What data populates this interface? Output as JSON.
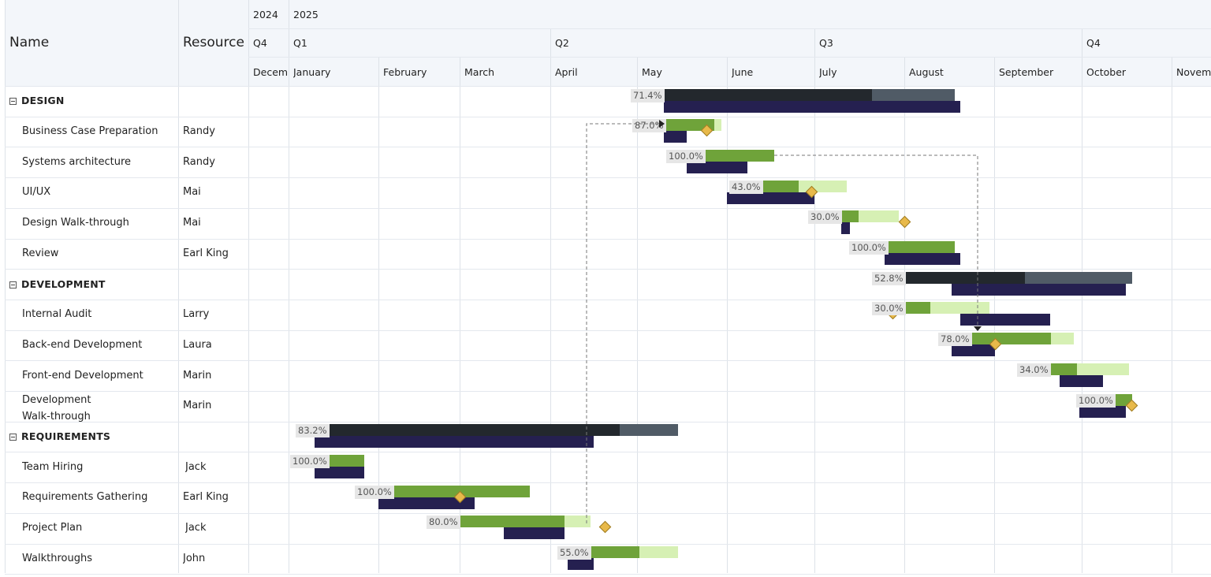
{
  "columns": {
    "name": "Name",
    "resource": "Resource"
  },
  "timeline": {
    "years": [
      "2024",
      "2025"
    ],
    "quarters": [
      "Q4",
      "Q1",
      "Q2",
      "Q3",
      "Q4"
    ],
    "months": [
      "December",
      "January",
      "February",
      "March",
      "April",
      "May",
      "June",
      "July",
      "August",
      "September",
      "October",
      "November"
    ]
  },
  "rows": [
    {
      "name": "DESIGN",
      "resource": "",
      "summary": true,
      "percent": "71.4%"
    },
    {
      "name": "Business Case Preparation",
      "resource": "Randy",
      "percent": "87.0%"
    },
    {
      "name": "Systems architecture",
      "resource": "Randy",
      "percent": "100.0%"
    },
    {
      "name": "UI/UX",
      "resource": "Mai",
      "percent": "43.0%"
    },
    {
      "name": "Design Walk-through",
      "resource": "Mai",
      "percent": "30.0%"
    },
    {
      "name": "Review",
      "resource": "Earl King",
      "percent": "100.0%"
    },
    {
      "name": "DEVELOPMENT",
      "resource": "",
      "summary": true,
      "percent": "52.8%"
    },
    {
      "name": "Internal Audit",
      "resource": "Larry",
      "percent": "30.0%"
    },
    {
      "name": "Back-end Development",
      "resource": "Laura",
      "percent": "78.0%"
    },
    {
      "name": "Front-end Development",
      "resource": "Marin",
      "percent": "34.0%"
    },
    {
      "name": "Development Walk-through",
      "resource": "Marin",
      "percent": "100.0%"
    },
    {
      "name": "REQUIREMENTS",
      "resource": "",
      "summary": true,
      "percent": "83.2%"
    },
    {
      "name": "Team Hiring",
      "resource": "Jack",
      "percent": "100.0%"
    },
    {
      "name": "Requirements Gathering",
      "resource": "Earl King",
      "percent": "100.0%"
    },
    {
      "name": "Project Plan",
      "resource": "Jack",
      "percent": "80.0%"
    },
    {
      "name": "Walkthroughs",
      "resource": "John",
      "percent": "55.0%"
    }
  ],
  "colors": {
    "task_done": "#6fa33a",
    "task_remaining": "#d6f0b4",
    "summary_done": "#23282d",
    "summary_remaining": "#505b66",
    "baseline": "#252050",
    "milestone": "#e8b94a",
    "header_bg": "#f3f6fa",
    "dependency_line": "#777777"
  }
}
